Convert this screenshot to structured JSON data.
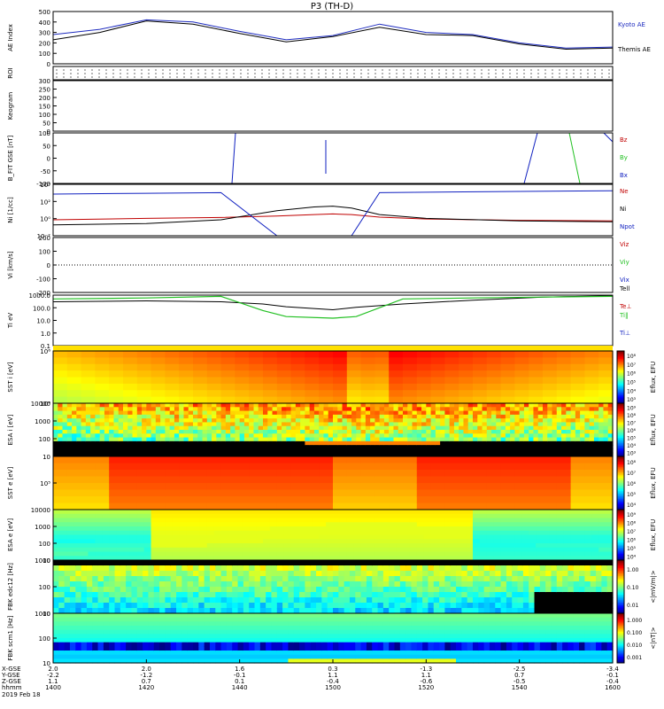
{
  "title": "P3 (TH-D)",
  "date_label": "2019 Feb 18",
  "panels": {
    "ae": {
      "ylabel": "AE Index",
      "ticks": [
        "500",
        "400",
        "300",
        "200",
        "100",
        "0"
      ],
      "legend": [
        "Kyoto AE",
        "Themis AE"
      ]
    },
    "roi": {
      "ylabel": "ROI"
    },
    "keogram": {
      "ylabel": "Keogram",
      "ticks": [
        "300",
        "250",
        "200",
        "150",
        "100",
        "50",
        "0"
      ]
    },
    "bfit": {
      "ylabel": "B_FIT GSE [nT]",
      "ticks": [
        "100",
        "50",
        "0",
        "-50",
        "-100"
      ],
      "legend": [
        "Bz",
        "By",
        "Bx"
      ]
    },
    "ni": {
      "ylabel": "Ni [1/cc]",
      "ticks": [
        "10⁴",
        "10²",
        "10⁰",
        "10⁻²"
      ],
      "legend": [
        "Ne",
        "Ni",
        "Npot"
      ]
    },
    "vi": {
      "ylabel": "Vi [km/s]",
      "ticks": [
        "200",
        "100",
        "0",
        "-100",
        "-200"
      ],
      "legend": [
        "Viz",
        "Viy",
        "Vix"
      ]
    },
    "ti": {
      "ylabel": "Ti eV",
      "ticks": [
        "1000.0",
        "100.0",
        "10.0",
        "1.0",
        "0.1"
      ],
      "legend": [
        "Tell",
        "Te⊥",
        "Ti‖",
        "Ti⊥"
      ]
    },
    "sst_i": {
      "ylabel": "SST i [eV]",
      "ticks": [
        "10⁶",
        "10⁴"
      ]
    },
    "esa_i": {
      "ylabel": "ESA i [eV]",
      "ticks": [
        "10000",
        "1000",
        "100",
        "10"
      ]
    },
    "sst_e": {
      "ylabel": "SST e [eV]",
      "ticks": [
        "10⁵"
      ]
    },
    "esa_e": {
      "ylabel": "ESA e [eV]",
      "ticks": [
        "10000",
        "1000",
        "100",
        "10"
      ]
    },
    "fbk_e": {
      "ylabel": "FBK edc12 [Hz]",
      "ticks": [
        "1000",
        "100",
        "10"
      ]
    },
    "fbk_b": {
      "ylabel": "FBK scm1 [Hz]",
      "ticks": [
        "1000",
        "100",
        "10"
      ]
    }
  },
  "colorbars": {
    "eflux1": {
      "label": "Eflux, EFU",
      "ticks": [
        "10⁸",
        "10⁷",
        "10⁶",
        "10⁵",
        "10⁴",
        "10³"
      ]
    },
    "eflux2": {
      "label": "Eflux, EFU",
      "ticks": [
        "10⁹",
        "10⁸",
        "10⁷",
        "10⁶",
        "10⁵",
        "10⁴",
        "10³"
      ]
    },
    "eflux3": {
      "label": "Eflux, EFU",
      "ticks": [
        "10⁸",
        "10⁷",
        "10⁶",
        "10⁵",
        "10⁴"
      ]
    },
    "eflux4": {
      "label": "Eflux, EFU",
      "ticks": [
        "10⁹",
        "10⁸",
        "10⁷",
        "10⁶",
        "10⁵",
        "10⁴"
      ]
    },
    "fbk_e": {
      "label": "<|mV/m|>",
      "ticks": [
        "1.00",
        "0.10",
        "0.01"
      ]
    },
    "fbk_b": {
      "label": "<|nT|>",
      "ticks": [
        "1.000",
        "0.100",
        "0.010",
        "0.001"
      ]
    }
  },
  "x_axis": {
    "row_labels": [
      "X-GSE",
      "Y-GSE",
      "Z-GSE",
      "hhmm"
    ],
    "columns": [
      {
        "x": "2.0",
        "y": "-2.2",
        "z": "1.1",
        "t": "1400"
      },
      {
        "x": "2.0",
        "y": "-1.2",
        "z": "0.7",
        "t": "1420"
      },
      {
        "x": "1.6",
        "y": "-0.1",
        "z": "0.1",
        "t": "1440"
      },
      {
        "x": "0.3",
        "y": "1.1",
        "z": "-0.4",
        "t": "1500"
      },
      {
        "x": "-1.3",
        "y": "1.1",
        "z": "-0.6",
        "t": "1520"
      },
      {
        "x": "-2.5",
        "y": "0.7",
        "z": "-0.5",
        "t": "1540"
      },
      {
        "x": "-3.4",
        "y": "-0.1",
        "z": "-0.4",
        "t": "1600"
      }
    ]
  },
  "colors": {
    "kyoto": "#1d2bbf",
    "themis": "#000000",
    "red": "#c00000",
    "green": "#22c022",
    "blue": "#1020c0"
  },
  "chart_data": [
    {
      "type": "line",
      "panel": "ae",
      "x": [
        1400,
        1410,
        1420,
        1430,
        1440,
        1450,
        1500,
        1510,
        1520,
        1530,
        1540,
        1550,
        1600
      ],
      "series": [
        {
          "name": "Kyoto AE",
          "values": [
            280,
            330,
            420,
            400,
            310,
            230,
            270,
            380,
            300,
            280,
            200,
            150,
            160
          ]
        },
        {
          "name": "Themis AE",
          "values": [
            230,
            300,
            410,
            380,
            290,
            210,
            260,
            350,
            280,
            270,
            190,
            140,
            150
          ]
        }
      ],
      "ylim": [
        0,
        500
      ]
    },
    {
      "type": "line",
      "panel": "ni",
      "x": [
        1400,
        1420,
        1436,
        1448,
        1456,
        1500,
        1504,
        1510,
        1520,
        1540,
        1600
      ],
      "series": [
        {
          "name": "Ne",
          "values": [
            0.3,
            0.5,
            0.7,
            1.2,
            2.0,
            2.5,
            2.0,
            0.8,
            0.4,
            0.25,
            0.2
          ]
        },
        {
          "name": "Ni",
          "values": [
            0.05,
            0.08,
            0.3,
            8,
            30,
            40,
            20,
            2,
            0.5,
            0.2,
            0.15
          ]
        },
        {
          "name": "Npot",
          "values": [
            3000,
            4000,
            5000,
            0.001,
            0.001,
            0.001,
            0.001,
            5000,
            6000,
            8000,
            10000
          ]
        }
      ]
    },
    {
      "type": "line",
      "panel": "ti",
      "x": [
        1400,
        1420,
        1436,
        1445,
        1450,
        1500,
        1505,
        1515,
        1530,
        1545,
        1600
      ],
      "series": [
        {
          "name": "Tell",
          "values": [
            300,
            350,
            300,
            200,
            120,
            70,
            110,
            200,
            400,
            700,
            900
          ]
        },
        {
          "name": "Ti‖",
          "values": [
            500,
            600,
            800,
            60,
            20,
            15,
            20,
            500,
            600,
            700,
            800
          ]
        }
      ]
    }
  ]
}
